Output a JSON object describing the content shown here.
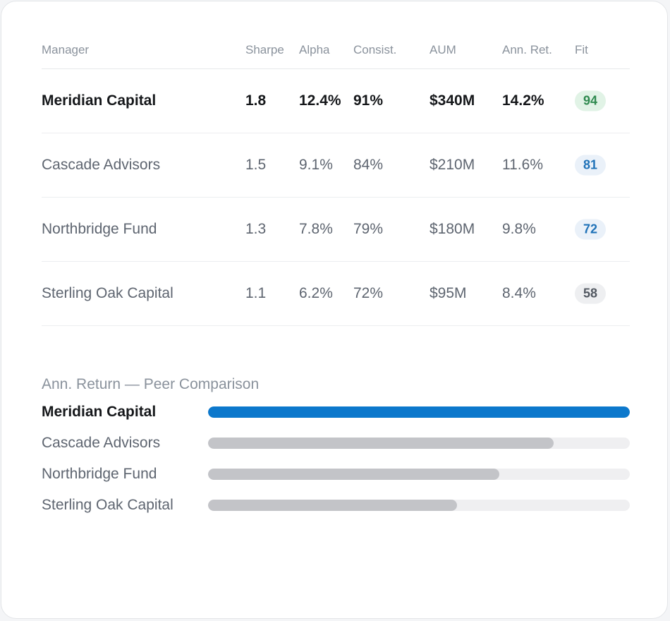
{
  "table": {
    "headers": {
      "manager": "Manager",
      "sharpe": "Sharpe",
      "alpha": "Alpha",
      "consistency": "Consist.",
      "aum": "AUM",
      "ann_ret": "Ann. Ret.",
      "fit": "Fit"
    },
    "rows": [
      {
        "name": "Meridian Capital",
        "sharpe": "1.8",
        "alpha": "12.4%",
        "consistency": "91%",
        "aum": "$340M",
        "ann_ret": "14.2%",
        "fit": "94",
        "fit_color": "#2f8a4f"
      },
      {
        "name": "Cascade Advisors",
        "sharpe": "1.5",
        "alpha": "9.1%",
        "consistency": "84%",
        "aum": "$210M",
        "ann_ret": "11.6%",
        "fit": "81",
        "fit_color": "#1f72b8"
      },
      {
        "name": "Northbridge Fund",
        "sharpe": "1.3",
        "alpha": "7.8%",
        "consistency": "79%",
        "aum": "$180M",
        "ann_ret": "9.8%",
        "fit": "72",
        "fit_color": "#1f72b8"
      },
      {
        "name": "Sterling Oak Capital",
        "sharpe": "1.1",
        "alpha": "6.2%",
        "consistency": "72%",
        "aum": "$95M",
        "ann_ret": "8.4%",
        "fit": "58",
        "fit_color": "#525861"
      }
    ]
  },
  "comparison": {
    "title": "Ann. Return — Peer Comparison",
    "highlight_color": "#0c78cc",
    "peer_color": "#c3c4c8",
    "bars": [
      {
        "label": "Meridian Capital",
        "value": 14.2,
        "fraction": 1.0
      },
      {
        "label": "Cascade Advisors",
        "value": 11.6,
        "fraction": 0.82
      },
      {
        "label": "Northbridge Fund",
        "value": 9.8,
        "fraction": 0.69
      },
      {
        "label": "Sterling Oak Capital",
        "value": 8.4,
        "fraction": 0.59
      }
    ]
  }
}
